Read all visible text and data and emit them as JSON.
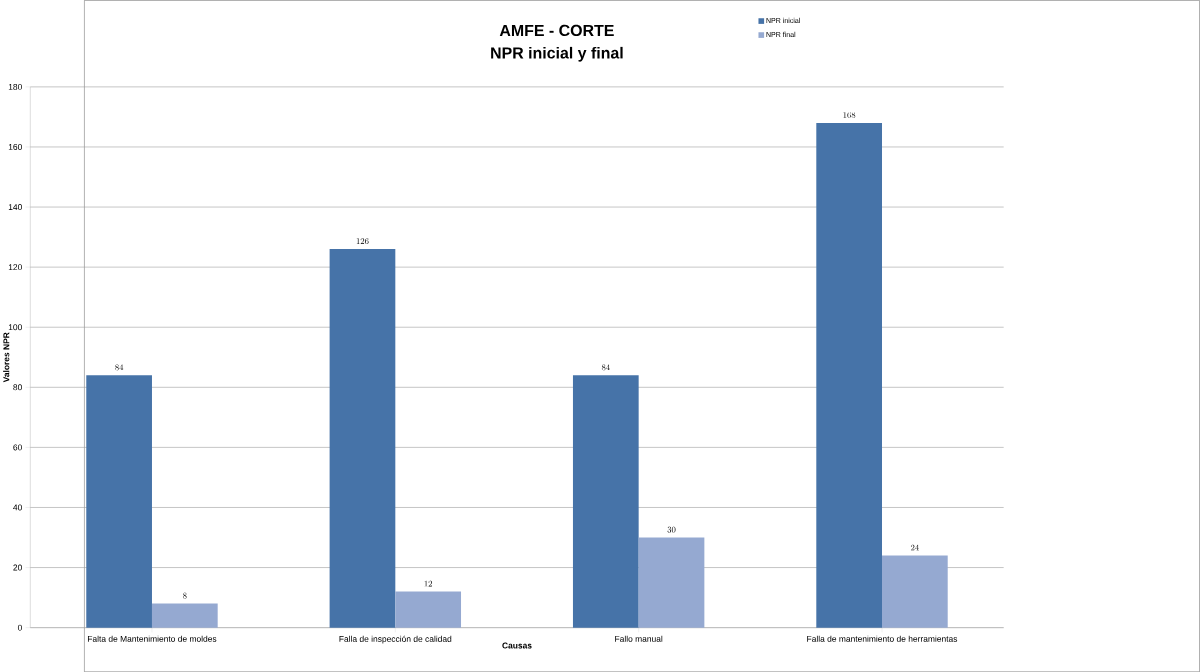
{
  "chart_data": {
    "type": "bar",
    "title": "AMFE - CORTE",
    "subtitle": "NPR inicial y final",
    "xlabel": "Causas",
    "ylabel": "Valores NPR",
    "categories": [
      "Falta de Mantenimiento  de moldes",
      "Falla de inspección de calidad",
      "Fallo manual",
      "Falla de mantenimiento  de herramientas"
    ],
    "series": [
      {
        "name": "NPR inicial",
        "color": "#4673a8",
        "values": [
          84,
          126,
          84,
          168
        ]
      },
      {
        "name": "NPR final",
        "color": "#95a9d1",
        "values": [
          8,
          12,
          30,
          24
        ]
      }
    ],
    "ylim": [
      0,
      180
    ],
    "yticks": [
      0,
      20,
      40,
      60,
      80,
      100,
      120,
      140,
      160,
      180
    ],
    "grid": "y",
    "legend": "top right",
    "data_labels": true
  }
}
